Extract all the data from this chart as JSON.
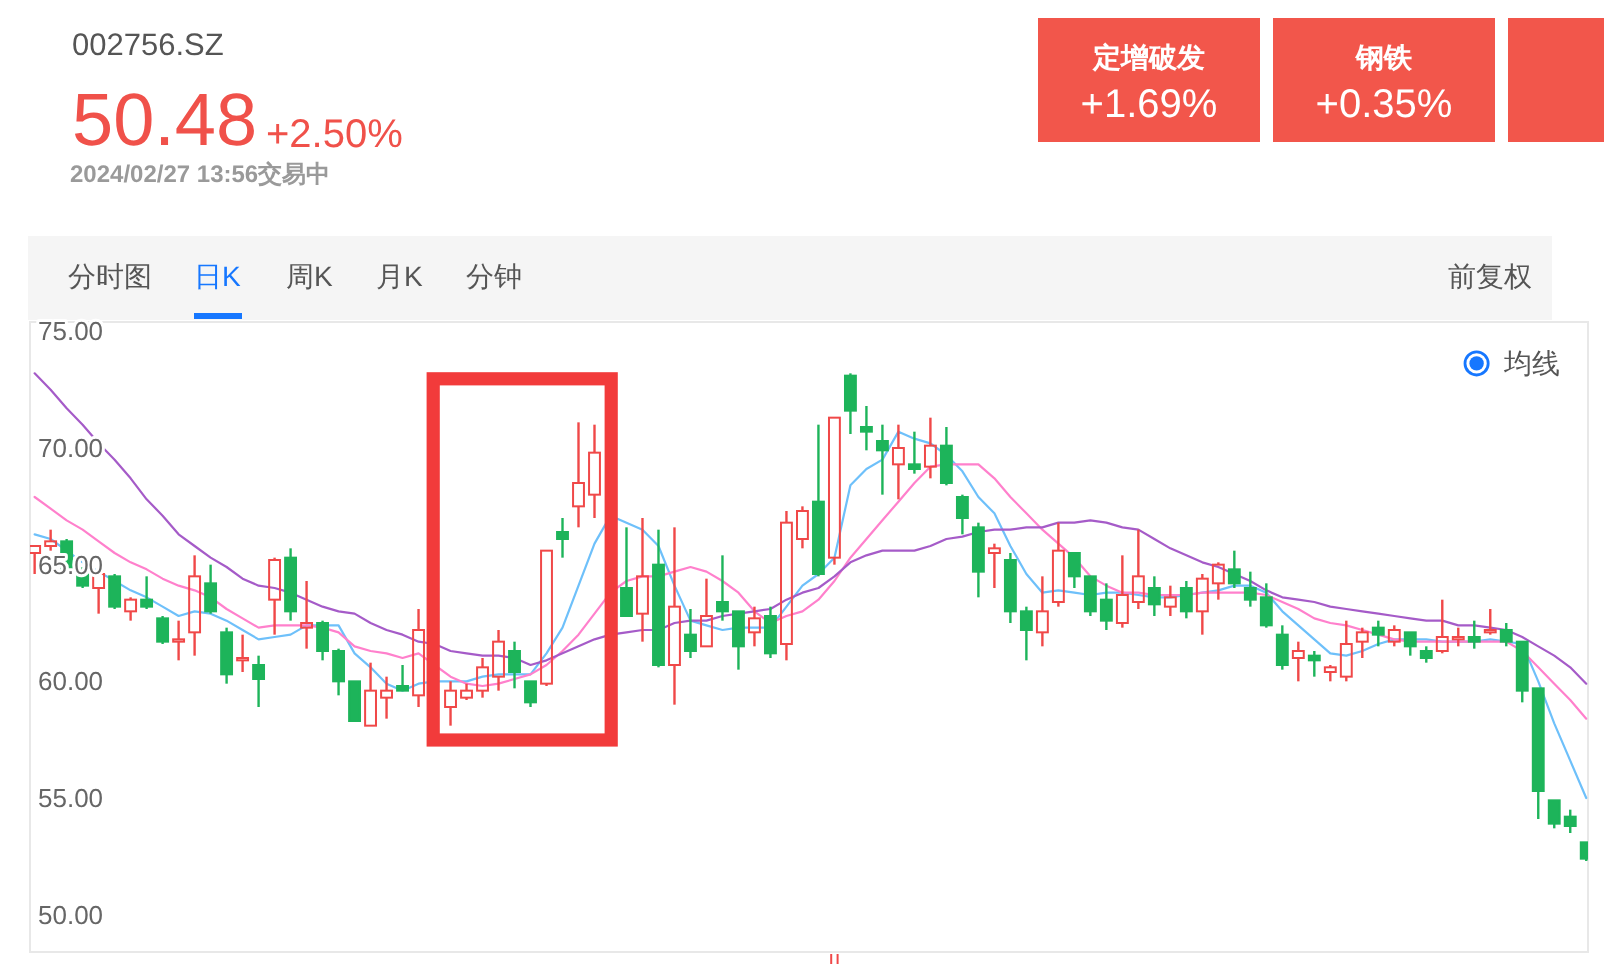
{
  "chart_data": {
    "type": "candlestick",
    "title": "002756.SZ",
    "annotations": [
      "50.48",
      "+2.50%",
      "2024/02/27 13:56交易中",
      "定增破发",
      "+1.69%",
      "钢铁",
      "+0.35%",
      "分时图",
      "日K",
      "周K",
      "月K",
      "分钟",
      "前复权",
      "均线"
    ],
    "categories": [
      null,
      null,
      null,
      null,
      null,
      null,
      null,
      null,
      null,
      null,
      null,
      null,
      null,
      null,
      null,
      null,
      null,
      null,
      null,
      null,
      null,
      null,
      null,
      null,
      null,
      null,
      null,
      null,
      null,
      null,
      null,
      null,
      null,
      null,
      null,
      null,
      null,
      null,
      null,
      null,
      null,
      null,
      null,
      null,
      null,
      null,
      null,
      null,
      null,
      null,
      null,
      null,
      null,
      null,
      null,
      null,
      null,
      null,
      null,
      null,
      null,
      null,
      null,
      null,
      null,
      null,
      null,
      null,
      null,
      null,
      null,
      null,
      null,
      null,
      null,
      null,
      null,
      null,
      null,
      null,
      null,
      null,
      null,
      null,
      null,
      null,
      null,
      null,
      null,
      null,
      null,
      null,
      null,
      null,
      null,
      null,
      null,
      null
    ],
    "ohlc": [
      [
        65.5,
        65.8,
        64.6,
        65.8
      ],
      [
        65.8,
        66.5,
        65.6,
        66.0
      ],
      [
        66.0,
        66.1,
        64.6,
        64.7
      ],
      [
        64.7,
        64.9,
        64.0,
        64.1
      ],
      [
        64.0,
        64.7,
        62.9,
        64.6
      ],
      [
        64.5,
        64.6,
        63.1,
        63.2
      ],
      [
        63.0,
        63.6,
        62.6,
        63.5
      ],
      [
        63.5,
        64.5,
        63.1,
        63.2
      ],
      [
        62.7,
        62.8,
        61.6,
        61.7
      ],
      [
        61.7,
        62.6,
        60.9,
        61.8
      ],
      [
        62.1,
        65.4,
        61.1,
        64.5
      ],
      [
        64.2,
        65.0,
        62.9,
        63.0
      ],
      [
        62.1,
        62.3,
        59.9,
        60.3
      ],
      [
        60.9,
        62.0,
        60.4,
        61.0
      ],
      [
        60.7,
        61.1,
        58.9,
        60.1
      ],
      [
        63.5,
        65.3,
        62.0,
        65.2
      ],
      [
        65.3,
        65.7,
        62.6,
        63.0
      ],
      [
        62.3,
        64.3,
        61.4,
        62.5
      ],
      [
        62.5,
        62.6,
        60.9,
        61.3
      ],
      [
        61.3,
        61.4,
        59.4,
        60.0
      ],
      [
        60.0,
        60.0,
        58.3,
        58.3
      ],
      [
        58.1,
        60.8,
        58.1,
        59.6
      ],
      [
        59.3,
        60.2,
        58.4,
        59.6
      ],
      [
        59.8,
        60.7,
        59.6,
        59.6
      ],
      [
        59.4,
        63.1,
        58.9,
        62.2
      ],
      null,
      [
        58.9,
        60.0,
        58.1,
        59.6
      ],
      [
        59.3,
        59.9,
        59.2,
        59.6
      ],
      [
        59.6,
        61.0,
        59.3,
        60.6
      ],
      [
        60.2,
        62.2,
        59.6,
        61.7
      ],
      [
        61.3,
        61.7,
        59.7,
        60.4
      ],
      [
        60.0,
        60.0,
        58.9,
        59.1
      ],
      [
        59.9,
        65.6,
        59.8,
        65.6
      ],
      [
        66.4,
        67.0,
        65.3,
        66.1
      ],
      [
        67.5,
        71.1,
        66.6,
        68.5
      ],
      [
        68.0,
        71.0,
        67.0,
        69.8
      ],
      null,
      [
        64.0,
        66.6,
        62.8,
        62.8
      ],
      [
        62.9,
        67.0,
        61.7,
        64.5
      ],
      [
        65.0,
        66.5,
        60.6,
        60.7
      ],
      [
        60.7,
        66.6,
        59.0,
        63.2
      ],
      [
        62.0,
        63.1,
        61.0,
        61.3
      ],
      [
        61.5,
        64.4,
        61.5,
        62.8
      ],
      [
        63.4,
        65.4,
        62.6,
        63.0
      ],
      [
        63.0,
        63.0,
        60.5,
        61.5
      ],
      [
        62.1,
        63.2,
        61.5,
        62.7
      ],
      [
        62.8,
        63.2,
        61.0,
        61.2
      ],
      [
        61.6,
        67.3,
        60.9,
        66.8
      ],
      [
        66.1,
        67.5,
        65.7,
        67.3
      ],
      [
        67.7,
        71.0,
        64.5,
        64.6
      ],
      [
        65.3,
        71.3,
        65.0,
        71.3
      ],
      [
        73.1,
        73.2,
        70.6,
        71.6
      ],
      [
        70.9,
        71.8,
        69.9,
        70.7
      ],
      [
        70.3,
        71.0,
        68.0,
        69.9
      ],
      [
        69.3,
        71.0,
        67.8,
        70.0
      ],
      [
        69.3,
        70.7,
        68.9,
        69.1
      ],
      [
        69.2,
        71.3,
        68.7,
        70.1
      ],
      [
        70.1,
        70.9,
        68.4,
        68.5
      ],
      [
        67.9,
        68.0,
        66.3,
        67.0
      ],
      [
        66.6,
        66.8,
        63.6,
        64.7
      ],
      [
        65.5,
        65.9,
        64.0,
        65.7
      ],
      [
        65.2,
        65.5,
        62.5,
        63.0
      ],
      [
        63.0,
        63.2,
        60.9,
        62.2
      ],
      [
        62.1,
        64.5,
        61.5,
        63.0
      ],
      [
        63.4,
        66.8,
        63.2,
        65.6
      ],
      [
        65.5,
        65.5,
        64.0,
        64.5
      ],
      [
        64.5,
        64.5,
        62.8,
        63.0
      ],
      [
        63.5,
        64.2,
        62.2,
        62.6
      ],
      [
        62.5,
        65.4,
        62.3,
        63.7
      ],
      [
        63.4,
        66.5,
        63.1,
        64.5
      ],
      [
        64.0,
        64.5,
        62.8,
        63.3
      ],
      [
        63.2,
        64.1,
        62.8,
        63.6
      ],
      [
        64.0,
        64.3,
        62.7,
        63.0
      ],
      [
        63.0,
        64.6,
        62.0,
        64.4
      ],
      [
        64.2,
        65.1,
        63.5,
        65.0
      ],
      [
        64.8,
        65.6,
        64.0,
        64.2
      ],
      [
        64.0,
        64.7,
        63.2,
        63.5
      ],
      [
        63.6,
        64.2,
        62.3,
        62.4
      ],
      [
        62.0,
        62.4,
        60.5,
        60.7
      ],
      [
        61.0,
        61.7,
        60.0,
        61.3
      ],
      [
        61.1,
        61.3,
        60.2,
        60.9
      ],
      [
        60.4,
        60.7,
        60.0,
        60.6
      ],
      [
        60.2,
        62.6,
        60.0,
        61.6
      ],
      [
        61.7,
        62.3,
        61.0,
        62.1
      ],
      [
        62.3,
        62.6,
        61.5,
        62.0
      ],
      [
        61.7,
        62.4,
        61.5,
        62.2
      ],
      [
        62.1,
        62.1,
        61.1,
        61.5
      ],
      [
        61.3,
        61.5,
        60.8,
        61.0
      ],
      [
        61.3,
        63.5,
        61.2,
        61.9
      ],
      [
        61.8,
        62.3,
        61.5,
        61.9
      ],
      [
        61.9,
        62.6,
        61.4,
        61.7
      ],
      [
        62.1,
        63.1,
        62.0,
        62.2
      ],
      [
        62.2,
        62.5,
        61.5,
        61.7
      ],
      [
        61.7,
        61.7,
        59.1,
        59.6
      ],
      [
        59.7,
        59.7,
        54.1,
        55.3
      ],
      [
        54.9,
        54.9,
        53.7,
        53.9
      ],
      [
        54.2,
        54.5,
        53.5,
        53.8
      ],
      [
        53.1,
        53.1,
        52.3,
        52.4
      ]
    ],
    "colors": [
      "#f04848",
      "#f04848",
      "#1db45a",
      "#1db45a",
      "#f04848",
      "#1db45a",
      "#f04848",
      "#1db45a",
      "#1db45a",
      "#f04848",
      "#f04848",
      "#1db45a",
      "#1db45a",
      "#f04848",
      "#1db45a",
      "#f04848",
      "#1db45a",
      "#f04848",
      "#1db45a",
      "#1db45a",
      "#1db45a",
      "#f04848",
      "#f04848",
      "#1db45a",
      "#f04848",
      null,
      "#f04848",
      "#f04848",
      "#f04848",
      "#f04848",
      "#1db45a",
      "#1db45a",
      "#f04848",
      "#1db45a",
      "#f04848",
      "#f04848",
      null,
      "#1db45a",
      "#f04848",
      "#1db45a",
      "#f04848",
      "#1db45a",
      "#f04848",
      "#1db45a",
      "#1db45a",
      "#f04848",
      "#1db45a",
      "#f04848",
      "#f04848",
      "#1db45a",
      "#f04848",
      "#1db45a",
      "#1db45a",
      "#1db45a",
      "#f04848",
      "#1db45a",
      "#f04848",
      "#1db45a",
      "#1db45a",
      "#1db45a",
      "#f04848",
      "#1db45a",
      "#1db45a",
      "#f04848",
      "#f04848",
      "#1db45a",
      "#1db45a",
      "#1db45a",
      "#f04848",
      "#f04848",
      "#1db45a",
      "#f04848",
      "#1db45a",
      "#f04848",
      "#f04848",
      "#1db45a",
      "#1db45a",
      "#1db45a",
      "#1db45a",
      "#f04848",
      "#1db45a",
      "#f04848",
      "#f04848",
      "#f04848",
      "#1db45a",
      "#f04848",
      "#1db45a",
      "#1db45a",
      "#f04848",
      "#f04848",
      "#1db45a",
      "#f04848",
      "#1db45a",
      "#1db45a",
      "#1db45a",
      "#1db45a",
      "#1db45a",
      "#1db45a"
    ],
    "series": [
      {
        "type": "line",
        "color": "#6ec0fa",
        "values": [
          66.3,
          66.1,
          65.6,
          65.1,
          64.7,
          64.3,
          63.9,
          63.6,
          63.2,
          62.8,
          63.0,
          62.9,
          62.6,
          62.2,
          61.8,
          61.9,
          62.0,
          62.4,
          62.4,
          62.4,
          61.2,
          60.6,
          59.9,
          59.6,
          59.9,
          60.0,
          60.0,
          60.0,
          60.2,
          60.3,
          60.3,
          60.3,
          61.2,
          62.3,
          64.1,
          65.9,
          67.1,
          66.8,
          66.5,
          65.8,
          64.1,
          62.6,
          62.4,
          62.2,
          62.3,
          62.3,
          62.3,
          63.2,
          64.1,
          64.6,
          65.3,
          68.4,
          69.1,
          69.5,
          70.7,
          70.4,
          70.2,
          69.7,
          69.0,
          67.9,
          67.2,
          65.8,
          64.6,
          63.8,
          63.9,
          63.8,
          63.7,
          63.8,
          63.8,
          63.7,
          63.6,
          63.6,
          63.7,
          63.8,
          63.9,
          64.1,
          64.1,
          63.8,
          63.0,
          62.4,
          61.8,
          61.2,
          61.1,
          61.3,
          61.6,
          61.8,
          61.8,
          61.8,
          61.7,
          61.7,
          61.7,
          61.8,
          61.7,
          61.6,
          60.0,
          58.2,
          56.6,
          55.0
        ]
      },
      {
        "type": "line",
        "color": "#ff80cc",
        "values": [
          67.9,
          67.4,
          66.9,
          66.5,
          66.0,
          65.5,
          65.1,
          64.8,
          64.4,
          64.1,
          63.9,
          63.6,
          63.1,
          62.7,
          62.3,
          62.4,
          62.4,
          62.4,
          62.3,
          62.1,
          61.5,
          61.3,
          61.2,
          61.0,
          61.2,
          60.7,
          60.2,
          59.9,
          59.8,
          59.9,
          60.1,
          60.3,
          60.7,
          61.3,
          62.0,
          62.9,
          63.8,
          64.3,
          64.5,
          64.5,
          64.7,
          64.9,
          64.7,
          64.3,
          63.8,
          63.0,
          62.5,
          62.8,
          63.0,
          63.5,
          64.3,
          65.3,
          66.1,
          66.9,
          67.7,
          68.5,
          69.2,
          69.3,
          69.3,
          69.3,
          68.7,
          67.9,
          67.2,
          66.5,
          65.9,
          65.3,
          64.5,
          64.1,
          63.8,
          63.8,
          63.7,
          63.7,
          63.7,
          63.8,
          63.8,
          63.8,
          63.8,
          63.7,
          63.4,
          63.1,
          62.7,
          62.5,
          62.4,
          62.2,
          62.0,
          61.8,
          61.7,
          61.7,
          61.7,
          61.7,
          61.7,
          61.7,
          61.7,
          61.3,
          60.6,
          59.9,
          59.2,
          58.4
        ]
      },
      {
        "type": "line",
        "color": "#a55bc8",
        "values": [
          73.2,
          72.5,
          71.7,
          71.0,
          70.2,
          69.5,
          68.7,
          67.8,
          67.1,
          66.3,
          65.8,
          65.3,
          64.9,
          64.4,
          64.1,
          64.0,
          63.8,
          63.5,
          63.2,
          63.0,
          62.9,
          62.5,
          62.2,
          62.0,
          61.7,
          61.6,
          61.3,
          61.2,
          61.1,
          61.1,
          61.0,
          60.7,
          60.9,
          61.2,
          61.5,
          61.8,
          62.0,
          62.1,
          62.2,
          62.2,
          62.5,
          62.6,
          62.6,
          62.8,
          62.9,
          63.0,
          63.1,
          63.5,
          63.8,
          64.0,
          64.5,
          65.1,
          65.4,
          65.6,
          65.6,
          65.6,
          65.8,
          66.1,
          66.2,
          66.4,
          66.5,
          66.5,
          66.6,
          66.6,
          66.8,
          66.8,
          66.9,
          66.8,
          66.6,
          66.5,
          66.1,
          65.7,
          65.4,
          65.1,
          64.9,
          64.6,
          64.3,
          63.9,
          63.6,
          63.5,
          63.4,
          63.2,
          63.1,
          63.0,
          62.9,
          62.8,
          62.7,
          62.6,
          62.6,
          62.4,
          62.4,
          62.3,
          62.2,
          61.9,
          61.5,
          61.1,
          60.6,
          59.9
        ]
      }
    ],
    "ylim": [
      48.4,
      75.4
    ],
    "yticks": [
      {
        "value": 50,
        "label": "50.00"
      },
      {
        "value": 55,
        "label": "55.00"
      },
      {
        "value": 60,
        "label": "60.00"
      },
      {
        "value": 65,
        "label": "65.00"
      },
      {
        "value": 70,
        "label": "70.00"
      },
      {
        "value": 75,
        "label": "75.00"
      }
    ],
    "tick_labels": "y"
  }
}
